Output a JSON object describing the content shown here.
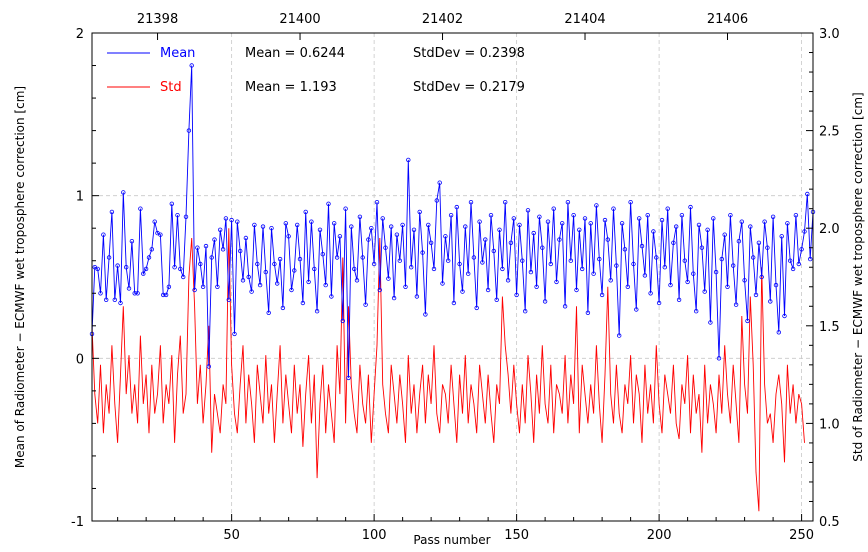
{
  "chart_data": {
    "type": "line",
    "xlabel": "Pass number",
    "ylabel_left": "Mean of Radiometer − ECMWF wet troposphere correction [cm]",
    "ylabel_right": "Std of Radiometer − ECMWF wet troposphere correction [cm]",
    "xlim": [
      1,
      254
    ],
    "ylim_left": [
      -1,
      2
    ],
    "ylim_right": [
      0.5,
      3.0
    ],
    "x_ticks": [
      50,
      100,
      150,
      200,
      250
    ],
    "y_ticks_left": [
      -1,
      0,
      1,
      2
    ],
    "y_ticks_right": [
      "0.5",
      "1.0",
      "1.5",
      "2.0",
      "2.5",
      "3.0"
    ],
    "top_axis": {
      "ticks": [
        {
          "label": "21398",
          "x": 24
        },
        {
          "label": "21400",
          "x": 74
        },
        {
          "label": "21402",
          "x": 124
        },
        {
          "label": "21404",
          "x": 174
        },
        {
          "label": "21406",
          "x": 224
        }
      ]
    },
    "grid": true,
    "legend_position": "top-left",
    "series": [
      {
        "name": "Mean",
        "color": "#0000ff",
        "axis": "left",
        "markers": true,
        "stat_mean": "Mean = 0.6244",
        "stat_std": "StdDev = 0.2398",
        "values": [
          0.15,
          0.56,
          0.55,
          0.4,
          0.76,
          0.36,
          0.62,
          0.9,
          0.36,
          0.57,
          0.34,
          1.02,
          0.56,
          0.43,
          0.72,
          0.4,
          0.4,
          0.92,
          0.52,
          0.55,
          0.62,
          0.67,
          0.84,
          0.77,
          0.76,
          0.39,
          0.39,
          0.44,
          0.95,
          0.56,
          0.88,
          0.55,
          0.5,
          0.87,
          1.4,
          1.8,
          0.42,
          0.68,
          0.58,
          0.44,
          0.69,
          -0.05,
          0.62,
          0.73,
          0.44,
          0.79,
          0.67,
          0.86,
          0.36,
          0.85,
          0.15,
          0.84,
          0.66,
          0.48,
          0.74,
          0.5,
          0.41,
          0.82,
          0.58,
          0.45,
          0.81,
          0.53,
          0.28,
          0.8,
          0.58,
          0.46,
          0.61,
          0.31,
          0.83,
          0.75,
          0.42,
          0.54,
          0.82,
          0.61,
          0.34,
          0.9,
          0.47,
          0.84,
          0.55,
          0.29,
          0.79,
          0.64,
          0.45,
          0.95,
          0.38,
          0.83,
          0.62,
          0.75,
          0.23,
          0.92,
          -0.12,
          0.81,
          0.55,
          0.48,
          0.87,
          0.62,
          0.33,
          0.73,
          0.8,
          0.58,
          0.96,
          0.42,
          0.86,
          0.68,
          0.49,
          0.81,
          0.37,
          0.76,
          0.6,
          0.82,
          0.44,
          1.22,
          0.56,
          0.79,
          0.38,
          0.9,
          0.65,
          0.27,
          0.82,
          0.71,
          0.55,
          0.97,
          1.08,
          0.46,
          0.75,
          0.6,
          0.88,
          0.34,
          0.93,
          0.58,
          0.41,
          0.81,
          0.52,
          0.96,
          0.62,
          0.31,
          0.84,
          0.59,
          0.73,
          0.42,
          0.88,
          0.66,
          0.36,
          0.79,
          0.55,
          0.96,
          0.48,
          0.71,
          0.86,
          0.39,
          0.82,
          0.6,
          0.29,
          0.91,
          0.53,
          0.77,
          0.44,
          0.87,
          0.68,
          0.35,
          0.84,
          0.58,
          0.92,
          0.47,
          0.73,
          0.83,
          0.32,
          0.96,
          0.6,
          0.88,
          0.42,
          0.79,
          0.55,
          0.86,
          0.28,
          0.83,
          0.52,
          0.94,
          0.61,
          0.39,
          0.85,
          0.73,
          0.48,
          0.92,
          0.57,
          0.14,
          0.83,
          0.67,
          0.44,
          0.96,
          0.58,
          0.3,
          0.86,
          0.69,
          0.51,
          0.88,
          0.4,
          0.78,
          0.62,
          0.34,
          0.85,
          0.56,
          0.92,
          0.45,
          0.71,
          0.81,
          0.36,
          0.88,
          0.6,
          0.47,
          0.93,
          0.52,
          0.29,
          0.82,
          0.68,
          0.41,
          0.79,
          0.22,
          0.86,
          0.53,
          0.0,
          0.61,
          0.76,
          0.44,
          0.88,
          0.57,
          0.33,
          0.72,
          0.84,
          0.48,
          0.23,
          0.81,
          0.62,
          0.39,
          0.71,
          0.5,
          0.84,
          0.68,
          0.35,
          0.87,
          0.45,
          0.16,
          0.75,
          0.26,
          0.83,
          0.6,
          0.55,
          0.88,
          0.58,
          0.67,
          0.78,
          1.01,
          0.61,
          0.9
        ]
      },
      {
        "name": "Std",
        "color": "#ff0000",
        "axis": "right",
        "markers": false,
        "stat_mean": "Mean = 1.193",
        "stat_std": "StdDev = 0.2179",
        "values": [
          1.5,
          1.15,
          1.0,
          1.3,
          0.95,
          1.2,
          1.05,
          1.4,
          1.1,
          0.9,
          1.25,
          1.6,
          1.15,
          1.35,
          1.05,
          1.2,
          1.0,
          1.45,
          1.1,
          1.25,
          0.95,
          1.3,
          1.05,
          1.15,
          1.4,
          1.0,
          1.2,
          1.1,
          1.35,
          0.9,
          1.25,
          1.45,
          1.05,
          1.15,
          1.75,
          1.95,
          1.6,
          1.1,
          1.3,
          1.0,
          1.2,
          1.5,
          0.85,
          1.15,
          1.05,
          0.95,
          1.2,
          1.1,
          2.0,
          1.3,
          1.05,
          0.95,
          1.2,
          1.4,
          1.0,
          1.25,
          1.1,
          0.9,
          1.3,
          1.15,
          1.0,
          1.35,
          1.05,
          1.2,
          0.9,
          1.15,
          1.4,
          1.0,
          1.25,
          1.1,
          0.95,
          1.3,
          1.05,
          1.2,
          0.88,
          1.15,
          1.35,
          1.0,
          1.25,
          0.72,
          1.1,
          1.3,
          0.95,
          1.2,
          1.05,
          0.9,
          1.4,
          1.15,
          1.85,
          1.0,
          1.6,
          1.2,
          1.05,
          0.95,
          1.3,
          1.1,
          1.0,
          1.25,
          0.9,
          1.15,
          1.4,
          1.95,
          1.2,
          1.05,
          0.95,
          1.3,
          1.15,
          1.0,
          1.25,
          1.1,
          0.9,
          1.35,
          1.05,
          1.2,
          0.95,
          1.15,
          1.3,
          1.0,
          1.25,
          1.1,
          1.4,
          1.05,
          0.95,
          1.2,
          1.15,
          1.0,
          1.3,
          1.1,
          0.9,
          1.25,
          1.05,
          1.35,
          1.0,
          1.2,
          1.1,
          0.95,
          1.3,
          1.15,
          1.0,
          1.25,
          1.05,
          0.9,
          1.2,
          1.1,
          1.65,
          1.4,
          1.25,
          1.05,
          1.3,
          1.1,
          0.95,
          1.2,
          1.0,
          1.35,
          1.15,
          0.9,
          1.25,
          1.05,
          1.4,
          1.1,
          1.0,
          1.3,
          0.95,
          1.2,
          1.15,
          1.05,
          1.35,
          1.0,
          1.25,
          1.1,
          1.6,
          0.95,
          1.3,
          1.15,
          1.0,
          1.2,
          1.05,
          1.4,
          1.1,
          0.9,
          1.25,
          1.7,
          1.15,
          1.0,
          1.3,
          1.05,
          0.95,
          1.2,
          1.1,
          1.35,
          1.0,
          1.25,
          1.15,
          0.9,
          1.3,
          1.05,
          1.2,
          1.0,
          1.4,
          1.1,
          0.95,
          1.25,
          1.15,
          1.05,
          1.3,
          1.0,
          0.92,
          1.2,
          1.1,
          1.35,
          0.95,
          1.25,
          1.05,
          1.15,
          0.85,
          1.3,
          1.0,
          1.2,
          1.1,
          0.95,
          1.25,
          1.05,
          1.4,
          1.15,
          1.0,
          1.3,
          1.1,
          0.9,
          1.55,
          1.2,
          1.05,
          1.65,
          1.3,
          0.75,
          0.55,
          1.8,
          1.2,
          1.0,
          1.05,
          0.9,
          1.15,
          1.25,
          1.1,
          0.8,
          1.3,
          1.05,
          1.2,
          1.0,
          1.15,
          1.1,
          0.9
        ]
      }
    ]
  }
}
